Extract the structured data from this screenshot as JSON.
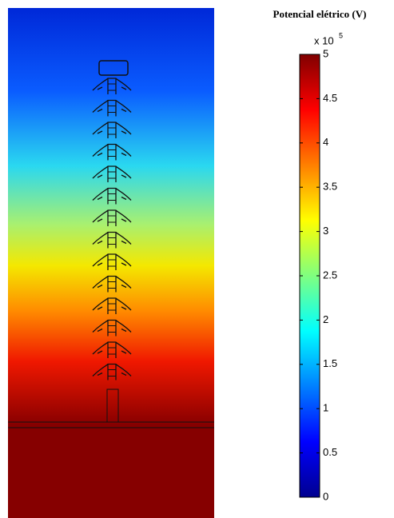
{
  "chart_data": {
    "type": "colorbar",
    "title": "Potencial elétrico (V)",
    "scale_base": "x 10",
    "scale_exponent": "5",
    "colormap": "jet",
    "clim": [
      0,
      5
    ],
    "cticks": [
      0,
      0.5,
      1,
      1.5,
      2,
      2.5,
      3,
      3.5,
      4,
      4.5,
      5
    ]
  }
}
